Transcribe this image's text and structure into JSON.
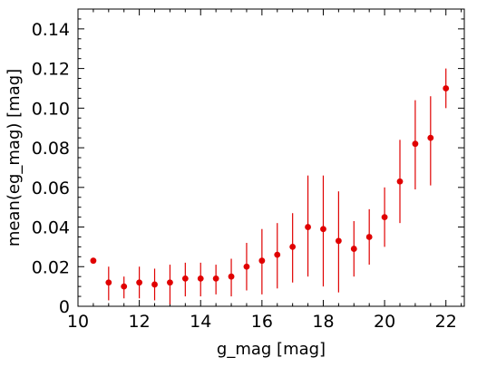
{
  "chart_data": {
    "type": "scatter",
    "title": "",
    "xlabel": "g_mag [mag]",
    "ylabel": "mean(eg_mag) [mag]",
    "xlim": [
      10,
      22.6
    ],
    "ylim": [
      0,
      0.15
    ],
    "x_ticks": [
      "10",
      "12",
      "14",
      "16",
      "18",
      "20",
      "22"
    ],
    "y_ticks": [
      "0",
      "0.02",
      "0.04",
      "0.06",
      "0.08",
      "0.10",
      "0.12",
      "0.14"
    ],
    "grid": false,
    "legend": "none",
    "marker_color": "#e00000",
    "points": [
      {
        "x": 10.5,
        "y": 0.023,
        "lo": 0.023,
        "hi": 0.023
      },
      {
        "x": 11.0,
        "y": 0.012,
        "lo": 0.003,
        "hi": 0.02
      },
      {
        "x": 11.5,
        "y": 0.01,
        "lo": 0.004,
        "hi": 0.015
      },
      {
        "x": 12.0,
        "y": 0.012,
        "lo": 0.004,
        "hi": 0.02
      },
      {
        "x": 12.5,
        "y": 0.011,
        "lo": 0.003,
        "hi": 0.019
      },
      {
        "x": 13.0,
        "y": 0.012,
        "lo": 0.001,
        "hi": 0.021
      },
      {
        "x": 13.5,
        "y": 0.014,
        "lo": 0.005,
        "hi": 0.022
      },
      {
        "x": 14.0,
        "y": 0.014,
        "lo": 0.005,
        "hi": 0.022
      },
      {
        "x": 14.5,
        "y": 0.014,
        "lo": 0.006,
        "hi": 0.021
      },
      {
        "x": 15.0,
        "y": 0.015,
        "lo": 0.005,
        "hi": 0.024
      },
      {
        "x": 15.5,
        "y": 0.02,
        "lo": 0.008,
        "hi": 0.032
      },
      {
        "x": 16.0,
        "y": 0.023,
        "lo": 0.006,
        "hi": 0.039
      },
      {
        "x": 16.5,
        "y": 0.026,
        "lo": 0.009,
        "hi": 0.042
      },
      {
        "x": 17.0,
        "y": 0.03,
        "lo": 0.012,
        "hi": 0.047
      },
      {
        "x": 17.5,
        "y": 0.04,
        "lo": 0.015,
        "hi": 0.066
      },
      {
        "x": 18.0,
        "y": 0.039,
        "lo": 0.01,
        "hi": 0.066
      },
      {
        "x": 18.5,
        "y": 0.033,
        "lo": 0.007,
        "hi": 0.058
      },
      {
        "x": 19.0,
        "y": 0.029,
        "lo": 0.015,
        "hi": 0.043
      },
      {
        "x": 19.5,
        "y": 0.035,
        "lo": 0.021,
        "hi": 0.049
      },
      {
        "x": 20.0,
        "y": 0.045,
        "lo": 0.03,
        "hi": 0.06
      },
      {
        "x": 20.5,
        "y": 0.063,
        "lo": 0.042,
        "hi": 0.084
      },
      {
        "x": 21.0,
        "y": 0.082,
        "lo": 0.059,
        "hi": 0.104
      },
      {
        "x": 21.5,
        "y": 0.085,
        "lo": 0.061,
        "hi": 0.106
      },
      {
        "x": 22.0,
        "y": 0.11,
        "lo": 0.1,
        "hi": 0.12
      }
    ]
  }
}
